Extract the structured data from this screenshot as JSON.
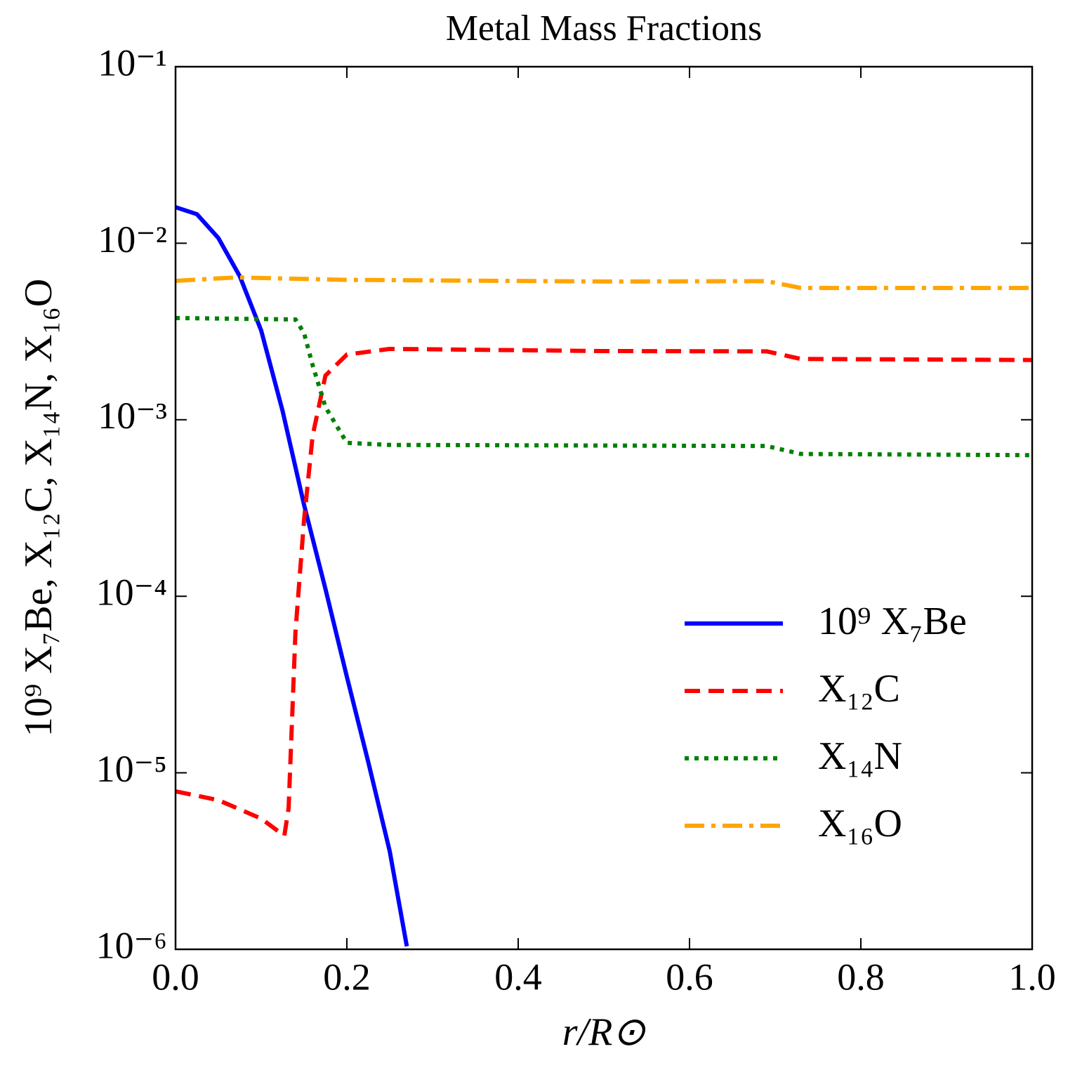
{
  "chart_data": {
    "type": "line",
    "title": "Metal Mass Fractions",
    "x_label": "r/R⊙",
    "y_label": "10⁹ X₇Be, X₁₂C, X₁₄N, X₁₆O",
    "yscale": "log",
    "xlim": [
      0,
      1
    ],
    "ylim": [
      1e-06,
      0.1
    ],
    "xticks": [
      {
        "value": 0,
        "label": "0.0"
      },
      0.2,
      0.4,
      0.6,
      0.8,
      {
        "value": 1,
        "label": "1.0"
      }
    ],
    "yticks": [
      {
        "value": 1e-06,
        "label": "10⁻⁶"
      },
      {
        "value": 1e-05,
        "label": "10⁻⁵"
      },
      {
        "value": 0.0001,
        "label": "10⁻⁴"
      },
      {
        "value": 0.001,
        "label": "10⁻³"
      },
      {
        "value": 0.01,
        "label": "10⁻²"
      },
      {
        "value": 0.1,
        "label": "10⁻¹"
      }
    ],
    "legend": "lower right",
    "series": [
      {
        "name": "10⁹ X₇Be",
        "color": "#0000ff",
        "style": "solid",
        "x": [
          0,
          0.025,
          0.05,
          0.075,
          0.1,
          0.125,
          0.15,
          0.175,
          0.2,
          0.225,
          0.25,
          0.27
        ],
        "values": [
          0.016,
          0.0146,
          0.0107,
          0.0065,
          0.0032,
          0.00112,
          0.00033,
          0.00011,
          3.5e-05,
          1.15e-05,
          3.6e-06,
          1.04e-06
        ]
      },
      {
        "name": "X₁₂C",
        "color": "#ff0000",
        "style": "dashed",
        "x": [
          0,
          0.05,
          0.1,
          0.127,
          0.132,
          0.14,
          0.15,
          0.16,
          0.175,
          0.2,
          0.25,
          0.5,
          0.69,
          0.73,
          1.0
        ],
        "values": [
          7.85e-06,
          7e-06,
          5.5e-06,
          4.4e-06,
          6.3e-06,
          6.3e-05,
          0.00027,
          0.00081,
          0.00178,
          0.00234,
          0.00252,
          0.00245,
          0.00244,
          0.00221,
          0.00218
        ]
      },
      {
        "name": "X₁₄N",
        "color": "#008000",
        "style": "dotted",
        "x": [
          0,
          0.14,
          0.15,
          0.16,
          0.175,
          0.2,
          0.25,
          0.69,
          0.73,
          1.0
        ],
        "values": [
          0.00377,
          0.0037,
          0.0031,
          0.00204,
          0.00118,
          0.00074,
          0.00072,
          0.00071,
          0.00064,
          0.00063
        ]
      },
      {
        "name": "X₁₆O",
        "color": "#ffa500",
        "style": "dashdot",
        "x": [
          0,
          0.07,
          0.2,
          0.5,
          0.69,
          0.73,
          1.0
        ],
        "values": [
          0.00612,
          0.0064,
          0.0062,
          0.00607,
          0.0061,
          0.00558,
          0.00558
        ]
      }
    ]
  }
}
